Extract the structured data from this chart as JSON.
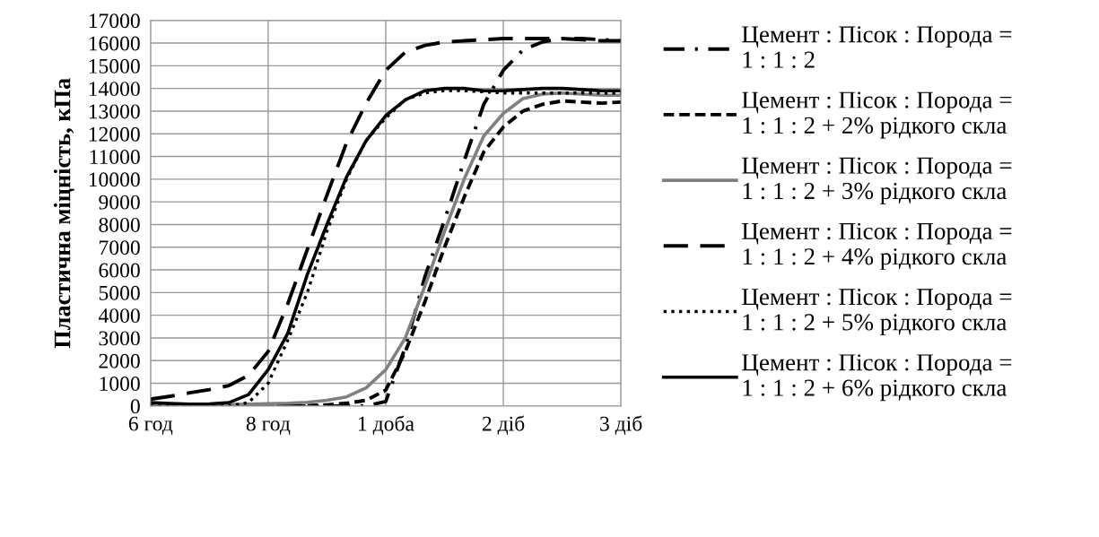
{
  "chart_data": {
    "type": "line",
    "ylabel": "Пластична міцність, кПа",
    "categories": [
      "6 год",
      null,
      null,
      null,
      null,
      null,
      "8 год",
      null,
      null,
      null,
      null,
      null,
      "1 доба",
      null,
      null,
      null,
      null,
      null,
      "2 діб",
      null,
      null,
      null,
      null,
      null,
      "3 діб"
    ],
    "series": [
      {
        "name": "Цемент : Пісок : Порода =\n1 : 1 : 2",
        "color": "#000000",
        "line_style": "dashdot",
        "values": [
          100,
          80,
          60,
          40,
          20,
          10,
          0,
          0,
          0,
          0,
          0,
          0,
          200,
          2600,
          5700,
          8200,
          10800,
          13300,
          14800,
          15700,
          16050,
          16200,
          16200,
          16150,
          16100
        ]
      },
      {
        "name": "Цемент : Пісок : Порода =\n1 : 1 : 2 + 2% рідкого скла",
        "color": "#000000",
        "line_style": "dashed",
        "values": [
          0,
          0,
          0,
          0,
          0,
          0,
          0,
          0,
          20,
          50,
          120,
          250,
          700,
          2400,
          4600,
          7000,
          9200,
          11200,
          12300,
          13000,
          13300,
          13450,
          13400,
          13350,
          13400
        ]
      },
      {
        "name": "Цемент : Пісок : Порода =\n1 : 1 : 2 + 3% рідкого скла",
        "color": "#808080",
        "line_style": "solid",
        "values": [
          100,
          80,
          60,
          50,
          60,
          80,
          100,
          120,
          160,
          250,
          400,
          800,
          1600,
          3000,
          5300,
          7700,
          10000,
          11900,
          12900,
          13550,
          13750,
          13800,
          13750,
          13700,
          13700
        ]
      },
      {
        "name": "Цемент : Пісок : Порода =\n1 : 1 : 2 + 4% рідкого скла",
        "color": "#000000",
        "line_style": "longdash",
        "values": [
          300,
          430,
          580,
          720,
          900,
          1350,
          2400,
          4500,
          6900,
          9300,
          11600,
          13350,
          14800,
          15600,
          15900,
          16050,
          16100,
          16150,
          16200,
          16200,
          16200,
          16200,
          16150,
          16100,
          16100
        ]
      },
      {
        "name": "Цемент : Пісок : Порода =\n1 : 1 : 2 + 5% рідкого скла",
        "color": "#000000",
        "line_style": "dotted",
        "values": [
          0,
          0,
          0,
          0,
          0,
          150,
          1000,
          2900,
          5000,
          7700,
          10000,
          11700,
          12700,
          13500,
          13800,
          13900,
          13900,
          13850,
          13800,
          13800,
          13800,
          13800,
          13800,
          13800,
          13800
        ]
      },
      {
        "name": "Цемент : Пісок : Порода =\n1 : 1 : 2 + 6% рідкого скла",
        "color": "#000000",
        "line_style": "solid",
        "values": [
          150,
          110,
          80,
          90,
          150,
          500,
          1600,
          3200,
          5800,
          8000,
          10100,
          11700,
          12800,
          13500,
          13900,
          14000,
          14000,
          13900,
          13900,
          13950,
          14000,
          14000,
          13950,
          13900,
          13900
        ]
      }
    ],
    "ylim": [
      0,
      17000
    ],
    "yticks": [
      0,
      1000,
      2000,
      3000,
      4000,
      5000,
      6000,
      7000,
      8000,
      9000,
      10000,
      11000,
      12000,
      13000,
      14000,
      15000,
      16000,
      17000
    ],
    "grid": true,
    "legend": "right"
  }
}
